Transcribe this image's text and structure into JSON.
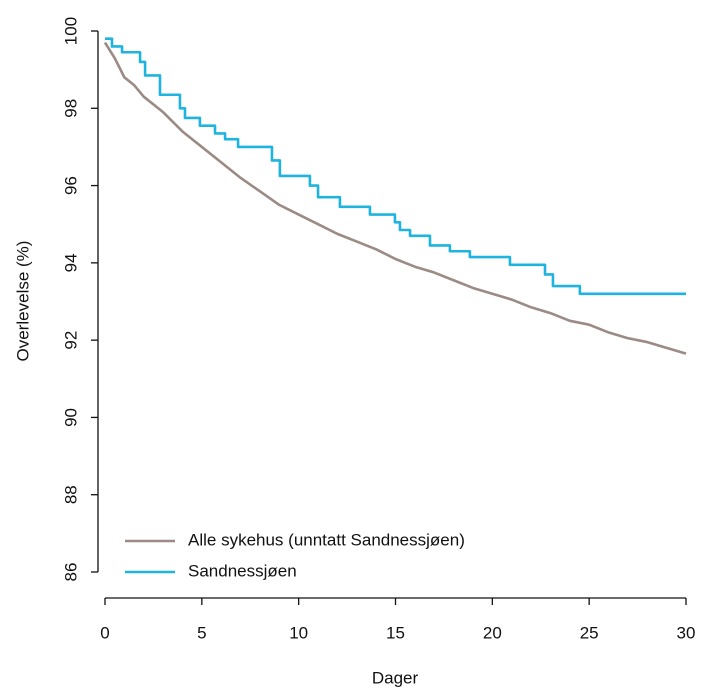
{
  "chart_data": {
    "type": "line",
    "xlabel": "Dager",
    "ylabel": "Overlevelse (%)",
    "xlim": [
      0,
      30
    ],
    "ylim": [
      86,
      100
    ],
    "xticks": [
      0,
      5,
      10,
      15,
      20,
      25,
      30
    ],
    "yticks": [
      86,
      88,
      90,
      92,
      94,
      96,
      98,
      100
    ],
    "legend": "bottom-left",
    "series": [
      {
        "name": "Alle sykehus (unntatt Sandnessjøen)",
        "color": "#9b8b84",
        "x": [
          0,
          0.5,
          1,
          1.5,
          2,
          3,
          4,
          5,
          6,
          7,
          8,
          9,
          10,
          11,
          12,
          13,
          14,
          15,
          16,
          17,
          18,
          19,
          20,
          21,
          22,
          23,
          24,
          25,
          26,
          27,
          28,
          29,
          30
        ],
        "values": [
          99.7,
          99.3,
          98.8,
          98.6,
          98.3,
          97.9,
          97.4,
          97.0,
          96.6,
          96.2,
          95.85,
          95.5,
          95.25,
          95.0,
          94.75,
          94.55,
          94.35,
          94.1,
          93.9,
          93.75,
          93.55,
          93.35,
          93.2,
          93.05,
          92.85,
          92.7,
          92.5,
          92.4,
          92.2,
          92.05,
          91.95,
          91.8,
          91.65
        ]
      },
      {
        "name": "Sandnessjøen",
        "color": "#1fb4e0",
        "x": [
          0,
          0.36,
          0.36,
          0.88,
          0.88,
          1.81,
          1.81,
          2.07,
          2.07,
          2.84,
          2.84,
          3.87,
          3.87,
          4.13,
          4.13,
          4.9,
          4.9,
          5.68,
          5.68,
          6.2,
          6.2,
          6.87,
          6.87,
          8.62,
          8.62,
          9.03,
          9.03,
          10.58,
          10.58,
          11.0,
          11.0,
          12.13,
          12.13,
          13.68,
          13.68,
          14.97,
          14.97,
          15.23,
          15.23,
          15.75,
          15.75,
          16.78,
          16.78,
          17.81,
          17.81,
          18.84,
          18.84,
          20.91,
          20.91,
          22.72,
          22.72,
          23.13,
          23.13,
          24.52,
          24.52,
          30
        ],
        "values": [
          99.8,
          99.8,
          99.6,
          99.6,
          99.45,
          99.45,
          99.2,
          99.2,
          98.85,
          98.85,
          98.35,
          98.35,
          98.0,
          98.0,
          97.75,
          97.75,
          97.55,
          97.55,
          97.35,
          97.35,
          97.2,
          97.2,
          97.0,
          97.0,
          96.65,
          96.65,
          96.25,
          96.25,
          96.0,
          96.0,
          95.7,
          95.7,
          95.45,
          95.45,
          95.25,
          95.25,
          95.05,
          95.05,
          94.85,
          94.85,
          94.7,
          94.7,
          94.45,
          94.45,
          94.3,
          94.3,
          94.15,
          94.15,
          93.95,
          93.95,
          93.7,
          93.7,
          93.4,
          93.4,
          93.2,
          93.2
        ]
      }
    ]
  }
}
